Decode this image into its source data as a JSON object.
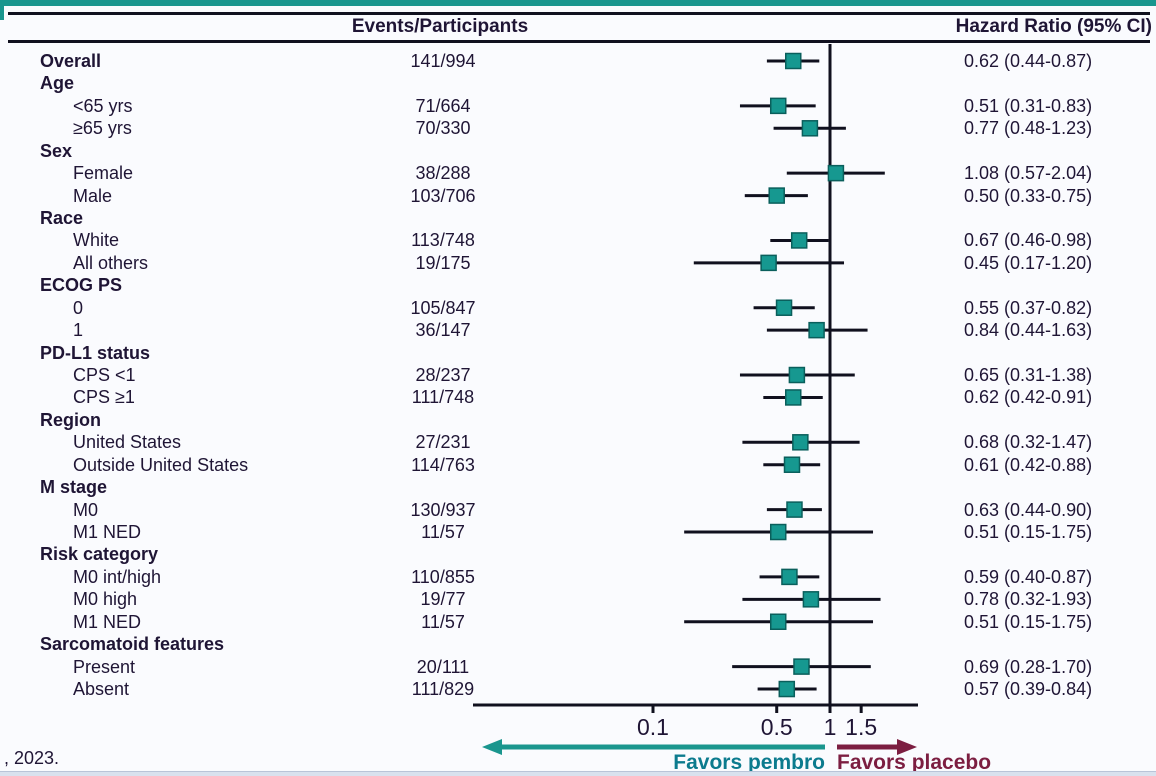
{
  "header": {
    "events_col": "Events/Participants",
    "hr_col": "Hazard Ratio (95% CI)"
  },
  "footer": {
    "citation": ", 2023.",
    "favors_left": "Favors pembro",
    "favors_right": "Favors placebo"
  },
  "colors": {
    "accent_teal": "#1a968e",
    "marker_fill": "#169890",
    "marker_stroke": "#0a5f5c",
    "line_black": "#10101e",
    "favors_left_teal": "#0c7b8e",
    "favors_right_maroon": "#7c1e41",
    "text": "#1f1535"
  },
  "chart_data": {
    "type": "forest",
    "scale": "log",
    "xlabel": "Hazard Ratio",
    "axis_ticks": [
      0.1,
      0.5,
      1,
      1.5
    ],
    "axis_tick_labels": [
      "0.1",
      "0.5",
      "1",
      "1.5"
    ],
    "reference_line": 1,
    "legend_left": "Favors pembro",
    "legend_right": "Favors placebo",
    "rows": [
      {
        "label": "Overall",
        "bold": true,
        "events": "141/994",
        "hr_text": "0.62 (0.44-0.87)",
        "hr": 0.62,
        "lo": 0.44,
        "hi": 0.87
      },
      {
        "label": "Age",
        "bold": true,
        "group": true
      },
      {
        "label": "<65 yrs",
        "events": "71/664",
        "hr_text": "0.51 (0.31-0.83)",
        "hr": 0.51,
        "lo": 0.31,
        "hi": 0.83
      },
      {
        "label": "≥65 yrs",
        "events": "70/330",
        "hr_text": "0.77 (0.48-1.23)",
        "hr": 0.77,
        "lo": 0.48,
        "hi": 1.23
      },
      {
        "label": "Sex",
        "bold": true,
        "group": true
      },
      {
        "label": "Female",
        "events": "38/288",
        "hr_text": "1.08 (0.57-2.04)",
        "hr": 1.08,
        "lo": 0.57,
        "hi": 2.04
      },
      {
        "label": "Male",
        "events": "103/706",
        "hr_text": "0.50 (0.33-0.75)",
        "hr": 0.5,
        "lo": 0.33,
        "hi": 0.75
      },
      {
        "label": "Race",
        "bold": true,
        "group": true
      },
      {
        "label": "White",
        "events": "113/748",
        "hr_text": "0.67 (0.46-0.98)",
        "hr": 0.67,
        "lo": 0.46,
        "hi": 0.98
      },
      {
        "label": "All others",
        "events": "19/175",
        "hr_text": "0.45 (0.17-1.20)",
        "hr": 0.45,
        "lo": 0.17,
        "hi": 1.2
      },
      {
        "label": "ECOG PS",
        "bold": true,
        "group": true
      },
      {
        "label": "0",
        "events": "105/847",
        "hr_text": "0.55 (0.37-0.82)",
        "hr": 0.55,
        "lo": 0.37,
        "hi": 0.82
      },
      {
        "label": "1",
        "events": "36/147",
        "hr_text": "0.84 (0.44-1.63)",
        "hr": 0.84,
        "lo": 0.44,
        "hi": 1.63
      },
      {
        "label": "PD-L1 status",
        "bold": true,
        "group": true
      },
      {
        "label": "CPS <1",
        "events": "28/237",
        "hr_text": "0.65 (0.31-1.38)",
        "hr": 0.65,
        "lo": 0.31,
        "hi": 1.38
      },
      {
        "label": "CPS ≥1",
        "events": "111/748",
        "hr_text": "0.62 (0.42-0.91)",
        "hr": 0.62,
        "lo": 0.42,
        "hi": 0.91
      },
      {
        "label": "Region",
        "bold": true,
        "group": true
      },
      {
        "label": "United States",
        "events": "27/231",
        "hr_text": "0.68 (0.32-1.47)",
        "hr": 0.68,
        "lo": 0.32,
        "hi": 1.47
      },
      {
        "label": "Outside United States",
        "events": "114/763",
        "hr_text": "0.61 (0.42-0.88)",
        "hr": 0.61,
        "lo": 0.42,
        "hi": 0.88
      },
      {
        "label": "M stage",
        "bold": true,
        "group": true
      },
      {
        "label": "M0",
        "events": "130/937",
        "hr_text": "0.63 (0.44-0.90)",
        "hr": 0.63,
        "lo": 0.44,
        "hi": 0.9
      },
      {
        "label": "M1 NED",
        "events": "11/57",
        "hr_text": "0.51 (0.15-1.75)",
        "hr": 0.51,
        "lo": 0.15,
        "hi": 1.75
      },
      {
        "label": "Risk category",
        "bold": true,
        "group": true
      },
      {
        "label": "M0 int/high",
        "events": "110/855",
        "hr_text": "0.59 (0.40-0.87)",
        "hr": 0.59,
        "lo": 0.4,
        "hi": 0.87
      },
      {
        "label": "M0 high",
        "events": "19/77",
        "hr_text": "0.78 (0.32-1.93)",
        "hr": 0.78,
        "lo": 0.32,
        "hi": 1.93
      },
      {
        "label": "M1 NED",
        "events": "11/57",
        "hr_text": "0.51 (0.15-1.75)",
        "hr": 0.51,
        "lo": 0.15,
        "hi": 1.75
      },
      {
        "label": "Sarcomatoid features",
        "bold": true,
        "group": true
      },
      {
        "label": "Present",
        "events": "20/111",
        "hr_text": "0.69 (0.28-1.70)",
        "hr": 0.69,
        "lo": 0.28,
        "hi": 1.7
      },
      {
        "label": "Absent",
        "events": "111/829",
        "hr_text": "0.57 (0.39-0.84)",
        "hr": 0.57,
        "lo": 0.39,
        "hi": 0.84
      }
    ]
  }
}
